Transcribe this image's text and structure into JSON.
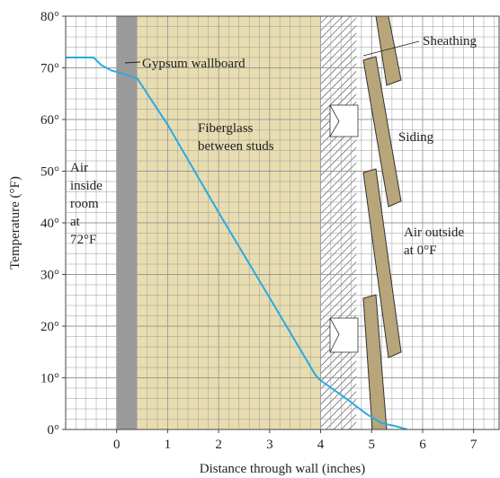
{
  "chart_data": {
    "type": "line",
    "xlabel": "Distance through wall (inches)",
    "ylabel": "Temperature (°F)",
    "xlim": [
      -1,
      7.5
    ],
    "ylim": [
      0,
      80
    ],
    "x_ticks": [
      "0",
      "1",
      "2",
      "3",
      "4",
      "5",
      "6",
      "7"
    ],
    "y_ticks": [
      "0°",
      "10°",
      "20°",
      "30°",
      "40°",
      "50°",
      "60°",
      "70°",
      "80°"
    ],
    "grid": true,
    "series": [
      {
        "color": "#29abe2",
        "points": [
          {
            "x": -1.0,
            "y": 72
          },
          {
            "x": -0.45,
            "y": 72
          },
          {
            "x": -0.3,
            "y": 70.5
          },
          {
            "x": -0.1,
            "y": 69.5
          },
          {
            "x": 0.0,
            "y": 69.2
          },
          {
            "x": 0.4,
            "y": 68
          },
          {
            "x": 1.0,
            "y": 59
          },
          {
            "x": 2.0,
            "y": 42
          },
          {
            "x": 3.0,
            "y": 25.5
          },
          {
            "x": 3.9,
            "y": 10.5
          },
          {
            "x": 4.0,
            "y": 9.5
          },
          {
            "x": 4.5,
            "y": 6
          },
          {
            "x": 4.9,
            "y": 3
          },
          {
            "x": 5.2,
            "y": 1.2
          },
          {
            "x": 5.45,
            "y": 0.7
          },
          {
            "x": 5.7,
            "y": 0
          }
        ]
      }
    ],
    "regions": [
      {
        "name": "gypsum",
        "x0": 0.0,
        "x1": 0.4,
        "color": "#9a9a9a"
      },
      {
        "name": "fiberglass",
        "x0": 0.4,
        "x1": 4.0,
        "color": "#e8ddb0"
      },
      {
        "name": "sheathing",
        "x0": 4.0,
        "x1": 4.7,
        "pattern": "hatch"
      }
    ],
    "annotations": [
      {
        "id": "gypsum",
        "text": "Gypsum wallboard"
      },
      {
        "id": "sheathing",
        "text": "Sheathing"
      },
      {
        "id": "siding",
        "text": "Siding"
      },
      {
        "id": "fiberglass_1",
        "text": "Fiberglass"
      },
      {
        "id": "fiberglass_2",
        "text": "between studs"
      },
      {
        "id": "air_in_1",
        "text": "Air"
      },
      {
        "id": "air_in_2",
        "text": "inside"
      },
      {
        "id": "air_in_3",
        "text": "room"
      },
      {
        "id": "air_in_4",
        "text": "at"
      },
      {
        "id": "air_in_5",
        "text": "72°F"
      },
      {
        "id": "air_out_1",
        "text": "Air outside"
      },
      {
        "id": "air_out_2",
        "text": "at 0°F"
      }
    ],
    "colors": {
      "line": "#29abe2",
      "gypsum": "#9a9a9a",
      "fiberglass": "#e8ddb0",
      "siding": "#b8a57a",
      "grid": "#9a9a9a"
    }
  }
}
